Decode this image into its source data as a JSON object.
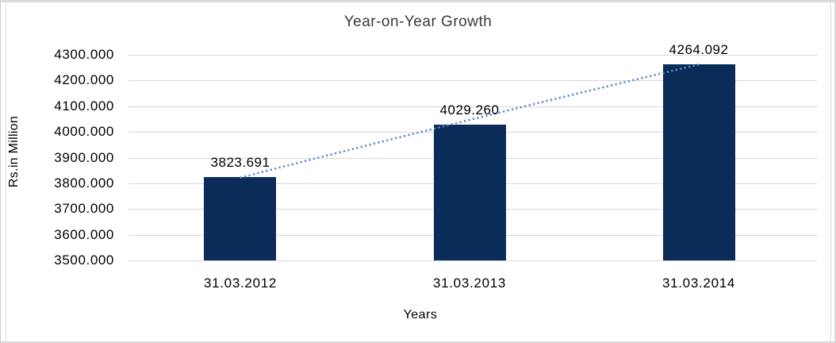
{
  "chart_data": {
    "type": "bar",
    "title": "Year-on-Year Growth",
    "xlabel": "Years",
    "ylabel": "Rs.in Million",
    "categories": [
      "31.03.2012",
      "31.03.2013",
      "31.03.2014"
    ],
    "values": [
      3823.691,
      4029.26,
      4264.092
    ],
    "data_labels": [
      "3823.691",
      "4029.260",
      "4264.092"
    ],
    "y_ticks": [
      "4300.000",
      "4200.000",
      "4100.000",
      "4000.000",
      "3900.000",
      "3800.000",
      "3700.000",
      "3600.000",
      "3500.000"
    ],
    "y_tick_values": [
      4300,
      4200,
      4100,
      4000,
      3900,
      3800,
      3700,
      3600,
      3500
    ],
    "ylim": [
      3500,
      4300
    ],
    "grid": true,
    "legend": false,
    "colors": {
      "bar": "#0b2b58",
      "trendline": "#5a8cc8",
      "gridline": "#d7d7d7",
      "title_text": "#3a3a3a",
      "axis_text": "#000000"
    },
    "trendline": {
      "style": "dotted",
      "fit": "linear"
    }
  }
}
